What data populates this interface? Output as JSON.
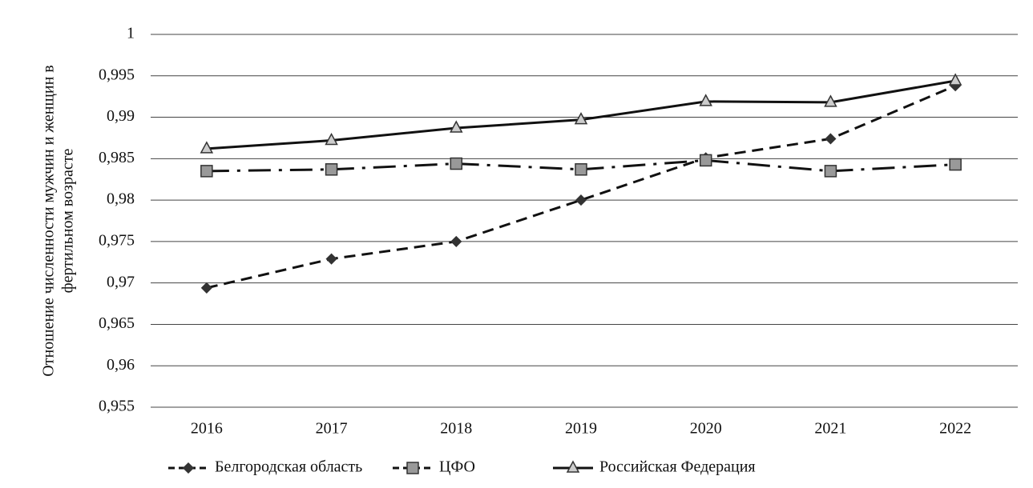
{
  "chart_data": {
    "type": "line",
    "ylabel": [
      "Отношение численности мужчин и женщин в",
      "фертильном возрасте"
    ],
    "categories": [
      "2016",
      "2017",
      "2018",
      "2019",
      "2020",
      "2021",
      "2022"
    ],
    "series": [
      {
        "name": "Белгородская область",
        "color": "#111111",
        "dash": "14 8",
        "marker": "diamond",
        "values": [
          0.9694,
          0.9729,
          0.975,
          0.98,
          0.9851,
          0.9874,
          0.9938
        ]
      },
      {
        "name": "ЦФО",
        "color": "#111111",
        "dash": "28 10 4 10",
        "marker": "square",
        "values": [
          0.9835,
          0.9837,
          0.9844,
          0.9837,
          0.9848,
          0.9835,
          0.9843
        ]
      },
      {
        "name": "Российская Федерация",
        "color": "#111111",
        "dash": "none",
        "marker": "triangle",
        "values": [
          0.9862,
          0.9872,
          0.9887,
          0.9897,
          0.9919,
          0.9918,
          0.9944
        ]
      }
    ],
    "ylim": [
      0.955,
      1
    ],
    "yticks": [
      {
        "value": 0.955,
        "label": "0,955"
      },
      {
        "value": 0.96,
        "label": "0,96"
      },
      {
        "value": 0.965,
        "label": "0,965"
      },
      {
        "value": 0.97,
        "label": "0,97"
      },
      {
        "value": 0.975,
        "label": "0,975"
      },
      {
        "value": 0.98,
        "label": "0,98"
      },
      {
        "value": 0.985,
        "label": "0,985"
      },
      {
        "value": 0.99,
        "label": "0,99"
      },
      {
        "value": 0.995,
        "label": "0,995"
      },
      1
    ],
    "grid": true,
    "legend": "bottom"
  }
}
